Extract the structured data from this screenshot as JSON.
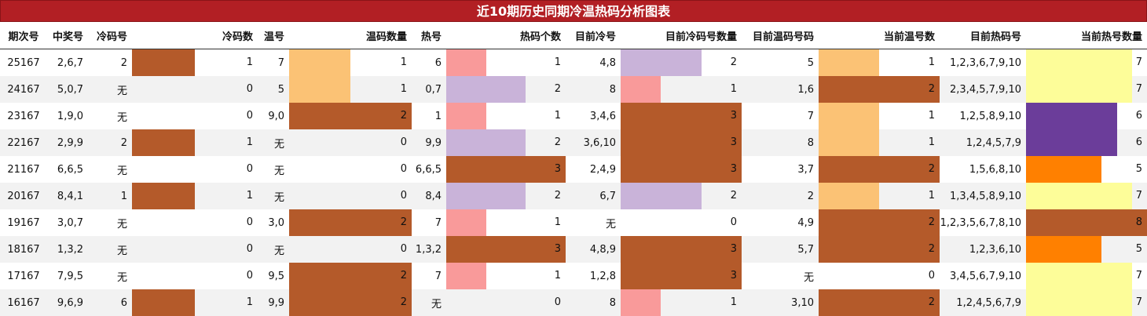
{
  "title": "近10期历史同期冷温热码分析图表",
  "headers": [
    "期次号",
    "中奖号",
    "冷码号",
    "冷码数",
    "温号",
    "温码数量",
    "热号",
    "热码个数",
    "目前冷号",
    "目前冷码号数量",
    "目前温码号码",
    "当前温号数",
    "目前热码号",
    "当前热号数量"
  ],
  "palette": {
    "header_bg": "#b21f24",
    "zebra_bg": "#f2f2f2",
    "brown": "#b45a2a",
    "light_orange": "#fbc275",
    "pink": "#f99a9a",
    "lavender": "#c9b3d9",
    "yellow": "#fdfd99",
    "purple": "#6b3d9a",
    "orange": "#ff8000"
  },
  "max_values": {
    "cold": 2,
    "warm": 2,
    "hot": 3,
    "cur_cold": 3,
    "cur_warm": 2,
    "cur_hot": 8
  },
  "rows": [
    {
      "period": "25167",
      "winning": "2,6,7",
      "cold_nums": "2",
      "cold_count": "1",
      "warm_nums": "7",
      "warm_count": "1",
      "hot_nums": "6",
      "hot_count": "1",
      "cur_cold_nums": "4,8",
      "cur_cold_count": "2",
      "cur_warm_nums": "5",
      "cur_warm_count": "1",
      "cur_hot_nums": "1,2,3,6,7,9,10",
      "cur_hot_count": "7"
    },
    {
      "period": "24167",
      "winning": "5,0,7",
      "cold_nums": "无",
      "cold_count": "0",
      "warm_nums": "5",
      "warm_count": "1",
      "hot_nums": "0,7",
      "hot_count": "2",
      "cur_cold_nums": "8",
      "cur_cold_count": "1",
      "cur_warm_nums": "1,6",
      "cur_warm_count": "2",
      "cur_hot_nums": "2,3,4,5,7,9,10",
      "cur_hot_count": "7"
    },
    {
      "period": "23167",
      "winning": "1,9,0",
      "cold_nums": "无",
      "cold_count": "0",
      "warm_nums": "9,0",
      "warm_count": "2",
      "hot_nums": "1",
      "hot_count": "1",
      "cur_cold_nums": "3,4,6",
      "cur_cold_count": "3",
      "cur_warm_nums": "7",
      "cur_warm_count": "1",
      "cur_hot_nums": "1,2,5,8,9,10",
      "cur_hot_count": "6"
    },
    {
      "period": "22167",
      "winning": "2,9,9",
      "cold_nums": "2",
      "cold_count": "1",
      "warm_nums": "无",
      "warm_count": "0",
      "hot_nums": "9,9",
      "hot_count": "2",
      "cur_cold_nums": "3,6,10",
      "cur_cold_count": "3",
      "cur_warm_nums": "8",
      "cur_warm_count": "1",
      "cur_hot_nums": "1,2,4,5,7,9",
      "cur_hot_count": "6"
    },
    {
      "period": "21167",
      "winning": "6,6,5",
      "cold_nums": "无",
      "cold_count": "0",
      "warm_nums": "无",
      "warm_count": "0",
      "hot_nums": "6,6,5",
      "hot_count": "3",
      "cur_cold_nums": "2,4,9",
      "cur_cold_count": "3",
      "cur_warm_nums": "3,7",
      "cur_warm_count": "2",
      "cur_hot_nums": "1,5,6,8,10",
      "cur_hot_count": "5"
    },
    {
      "period": "20167",
      "winning": "8,4,1",
      "cold_nums": "1",
      "cold_count": "1",
      "warm_nums": "无",
      "warm_count": "0",
      "hot_nums": "8,4",
      "hot_count": "2",
      "cur_cold_nums": "6,7",
      "cur_cold_count": "2",
      "cur_warm_nums": "2",
      "cur_warm_count": "1",
      "cur_hot_nums": "1,3,4,5,8,9,10",
      "cur_hot_count": "7"
    },
    {
      "period": "19167",
      "winning": "3,0,7",
      "cold_nums": "无",
      "cold_count": "0",
      "warm_nums": "3,0",
      "warm_count": "2",
      "hot_nums": "7",
      "hot_count": "1",
      "cur_cold_nums": "无",
      "cur_cold_count": "0",
      "cur_warm_nums": "4,9",
      "cur_warm_count": "2",
      "cur_hot_nums": "1,2,3,5,6,7,8,10",
      "cur_hot_count": "8"
    },
    {
      "period": "18167",
      "winning": "1,3,2",
      "cold_nums": "无",
      "cold_count": "0",
      "warm_nums": "无",
      "warm_count": "0",
      "hot_nums": "1,3,2",
      "hot_count": "3",
      "cur_cold_nums": "4,8,9",
      "cur_cold_count": "3",
      "cur_warm_nums": "5,7",
      "cur_warm_count": "2",
      "cur_hot_nums": "1,2,3,6,10",
      "cur_hot_count": "5"
    },
    {
      "period": "17167",
      "winning": "7,9,5",
      "cold_nums": "无",
      "cold_count": "0",
      "warm_nums": "9,5",
      "warm_count": "2",
      "hot_nums": "7",
      "hot_count": "1",
      "cur_cold_nums": "1,2,8",
      "cur_cold_count": "3",
      "cur_warm_nums": "无",
      "cur_warm_count": "0",
      "cur_hot_nums": "3,4,5,6,7,9,10",
      "cur_hot_count": "7"
    },
    {
      "period": "16167",
      "winning": "9,6,9",
      "cold_nums": "6",
      "cold_count": "1",
      "warm_nums": "9,9",
      "warm_count": "2",
      "hot_nums": "无",
      "hot_count": "0",
      "cur_cold_nums": "8",
      "cur_cold_count": "1",
      "cur_warm_nums": "3,10",
      "cur_warm_count": "2",
      "cur_hot_nums": "1,2,4,5,6,7,9",
      "cur_hot_count": "7"
    }
  ]
}
